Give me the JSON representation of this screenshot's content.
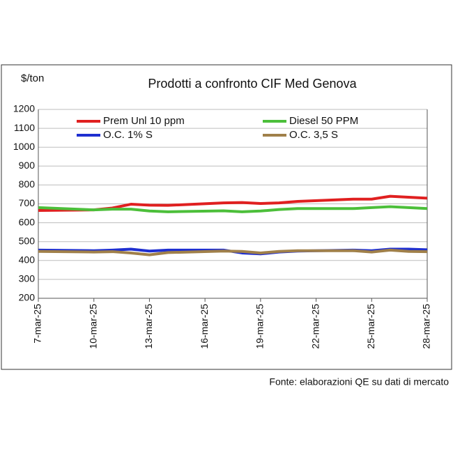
{
  "chart_data": {
    "type": "line",
    "title": "Prodotti a confronto CIF Med Genova",
    "y_label": "$/ton",
    "source": "Fonte: elaborazioni QE su dati di mercato",
    "x": [
      "7-mar-25",
      "10-mar-25",
      "11-mar-25",
      "12-mar-25",
      "13-mar-25",
      "14-mar-25",
      "17-mar-25",
      "18-mar-25",
      "19-mar-25",
      "20-mar-25",
      "21-mar-25",
      "24-mar-25",
      "25-mar-25",
      "26-mar-25",
      "27-mar-25",
      "28-mar-25"
    ],
    "xticks": [
      "7-mar-25",
      "10-mar-25",
      "13-mar-25",
      "16-mar-25",
      "19-mar-25",
      "22-mar-25",
      "25-mar-25",
      "28-mar-25"
    ],
    "ylim": [
      200,
      1200
    ],
    "yticks": [
      200,
      300,
      400,
      500,
      600,
      700,
      800,
      900,
      1000,
      1100,
      1200
    ],
    "grid": true,
    "series": [
      {
        "name": "Prem Unl 10 ppm",
        "color": "#e02020",
        "values": [
          665,
          668,
          678,
          698,
          693,
          692,
          705,
          707,
          702,
          705,
          713,
          725,
          725,
          740,
          735,
          730
        ]
      },
      {
        "name": "Diesel 50 PPM",
        "color": "#4cbf3a",
        "values": [
          680,
          668,
          672,
          672,
          662,
          658,
          663,
          658,
          662,
          670,
          675,
          675,
          680,
          685,
          680,
          675
        ]
      },
      {
        "name": "O.C. 1% S",
        "color": "#1f2fd0",
        "values": [
          455,
          452,
          455,
          460,
          450,
          455,
          455,
          440,
          435,
          445,
          450,
          455,
          452,
          460,
          460,
          457
        ]
      },
      {
        "name": "O.C. 3,5 S",
        "color": "#a0804a",
        "values": [
          448,
          445,
          447,
          440,
          430,
          442,
          450,
          448,
          440,
          448,
          452,
          452,
          445,
          455,
          448,
          447
        ]
      }
    ]
  }
}
